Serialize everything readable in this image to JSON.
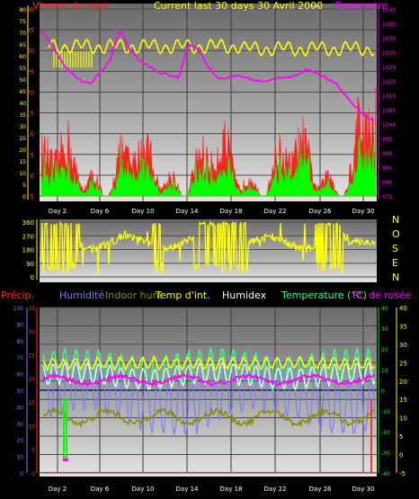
{
  "header": {
    "wind_title": "Vitesse du vent",
    "period_title": "Current last 30 days 30 Avril 2000",
    "separator": "---",
    "barometer_title": "Barometre"
  },
  "legend": {
    "precip": "Précip.",
    "humidity": "Humidité",
    "indoor_hum": "Indoor hum",
    "temp_int": "Temp d'int.",
    "humidex": "Humidex",
    "temperature": "Temperature (°C)",
    "dew_point": "Pt. de rosée"
  },
  "colors": {
    "wind": "#ff2020",
    "gust": "#00ff00",
    "barometer": "#ff00ff",
    "yellow": "#ffff00",
    "humidity": "#7b7bff",
    "indoor_hum": "#8b8b00",
    "temperature": "#30ff90",
    "humidex": "#ffffff",
    "precip": "#ff3030",
    "dew": "#ff00ff",
    "axis_green": "#00ff00",
    "axis_yellow": "#ffff00"
  },
  "chart_data": [
    {
      "type": "line",
      "name": "wind-barometer",
      "x_ticks": [
        "Day 2",
        "Day 6",
        "Day 10",
        "Day 14",
        "Day 18",
        "Day 22",
        "Day 26",
        "Day 30"
      ],
      "y_left_ticks_red": [
        "40",
        "35",
        "30",
        "25",
        "20",
        "15",
        "10",
        "5",
        "0",
        "-5"
      ],
      "y_left_ticks_yellow": [
        "80",
        "75",
        "70",
        "65",
        "60",
        "55",
        "50",
        "45",
        "40",
        "35",
        "30",
        "25",
        "20",
        "15",
        "10",
        "5",
        "0"
      ],
      "y_right_ticks": [
        "1040",
        "1035",
        "1030",
        "1025",
        "1020",
        "1015",
        "1010",
        "1005",
        "1000",
        "995",
        "990",
        "985",
        "980",
        "975"
      ],
      "barometer": [
        1032,
        1028,
        1022,
        1018,
        1015,
        1014,
        1018,
        1022,
        1033,
        1026,
        1022,
        1020,
        1018,
        1017,
        1016,
        1028,
        1026,
        1020,
        1016,
        1016,
        1017,
        1016,
        1015,
        1015,
        1016,
        1016,
        1017,
        1019,
        1018,
        1016,
        1014,
        1010,
        1006,
        1003,
        1001
      ],
      "ylim_right": [
        975,
        1040
      ]
    },
    {
      "type": "line",
      "name": "wind-direction",
      "y_ticks": [
        "360",
        "270",
        "180",
        "90",
        "0"
      ],
      "compass": [
        "N",
        "O",
        "S",
        "E",
        "N"
      ]
    },
    {
      "type": "line",
      "name": "temperature-humidity",
      "x_ticks": [
        "Day 2",
        "Day 6",
        "Day 10",
        "Day 14",
        "Day 18",
        "Day 22",
        "Day 26",
        "Day 30"
      ],
      "y_hum_ticks": [
        "100",
        "90",
        "80",
        "70",
        "60",
        "50",
        "40",
        "30",
        "20",
        "10",
        "0"
      ],
      "y_precip_ticks": [
        "35",
        "30",
        "25",
        "20",
        "15",
        "10",
        "5",
        "0"
      ],
      "y_temp_ticks_green": [
        "40",
        "30",
        "20",
        "10",
        "0",
        "-10",
        "-20",
        "-30",
        "-40"
      ],
      "y_temp_ticks_yellow": [
        "40",
        "35",
        "30",
        "25",
        "20",
        "15",
        "10",
        "5",
        "0",
        "-5"
      ],
      "ylim_temp": [
        -40,
        40
      ]
    }
  ]
}
